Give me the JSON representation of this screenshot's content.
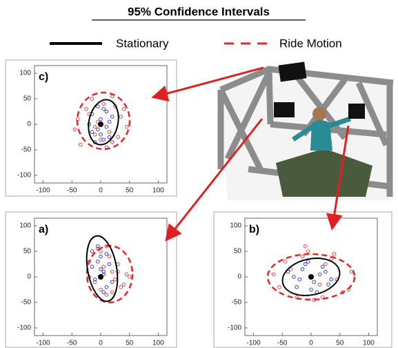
{
  "title": "95% Confidence Intervals",
  "legend": {
    "items": [
      {
        "name": "Stationary",
        "color": "#000000",
        "dash": false
      },
      {
        "name": "Ride Motion",
        "color": "#e02828",
        "dash": true
      }
    ]
  },
  "chart_data": [
    {
      "type": "scatter",
      "label": "c)",
      "xlim": [
        -115,
        115
      ],
      "ylim": [
        -115,
        115
      ],
      "xticks": [
        -100,
        -50,
        0,
        50,
        100
      ],
      "yticks": [
        -100,
        -50,
        0,
        50,
        100
      ],
      "series": [
        {
          "color": "#e04848",
          "x": [
            -40,
            -25,
            -10,
            5,
            20,
            35,
            45,
            -35,
            -15,
            10,
            25,
            -5,
            15,
            30,
            -20,
            0,
            40,
            -45,
            20,
            -10
          ],
          "values": [
            10,
            30,
            -20,
            40,
            -35,
            15,
            -5,
            -40,
            50,
            -45,
            35,
            5,
            -15,
            -25,
            20,
            -30,
            30,
            -10,
            55,
            -5
          ]
        },
        {
          "color": "#3b3bd8",
          "x": [
            -15,
            -5,
            5,
            15,
            -10,
            0,
            10,
            20,
            -20,
            5,
            -5,
            15,
            0,
            10,
            -15
          ],
          "values": [
            20,
            -10,
            30,
            -25,
            -35,
            10,
            -5,
            15,
            0,
            -30,
            35,
            5,
            -20,
            25,
            -15
          ]
        }
      ]
    },
    {
      "type": "scatter",
      "label": "a)",
      "xlim": [
        -115,
        115
      ],
      "ylim": [
        -115,
        115
      ],
      "xticks": [
        -100,
        -50,
        0,
        50,
        100
      ],
      "yticks": [
        -100,
        -50,
        0,
        50,
        100
      ],
      "series": [
        {
          "color": "#e04848",
          "x": [
            -20,
            0,
            20,
            35,
            45,
            10,
            -10,
            30,
            15,
            25,
            5,
            40,
            -5,
            20,
            30,
            50,
            0,
            10
          ],
          "values": [
            30,
            50,
            10,
            -20,
            5,
            -35,
            -10,
            25,
            40,
            -5,
            20,
            -15,
            55,
            -30,
            10,
            0,
            -25,
            60
          ]
        },
        {
          "color": "#3b3bd8",
          "x": [
            -15,
            -5,
            5,
            10,
            -10,
            0,
            15,
            -20,
            5,
            -5,
            10,
            0,
            -15,
            20,
            5
          ],
          "values": [
            50,
            30,
            10,
            -20,
            -5,
            40,
            25,
            0,
            -30,
            60,
            45,
            15,
            20,
            -10,
            5
          ]
        }
      ]
    },
    {
      "type": "scatter",
      "label": "b)",
      "xlim": [
        -115,
        115
      ],
      "ylim": [
        -115,
        115
      ],
      "xticks": [
        -100,
        -50,
        0,
        50,
        100
      ],
      "yticks": [
        -100,
        -50,
        0,
        50,
        100
      ],
      "series": [
        {
          "color": "#e04848",
          "x": [
            -65,
            -45,
            -25,
            -5,
            15,
            35,
            55,
            70,
            -55,
            -35,
            -15,
            5,
            25,
            45,
            65,
            -10,
            20,
            40
          ],
          "values": [
            5,
            30,
            -40,
            50,
            -15,
            35,
            -30,
            10,
            -20,
            15,
            40,
            -45,
            25,
            -5,
            -25,
            60,
            -40,
            45
          ]
        },
        {
          "color": "#3b3bd8",
          "x": [
            -40,
            -25,
            -10,
            5,
            20,
            35,
            -30,
            -15,
            0,
            15,
            30,
            -5,
            10,
            25,
            -20
          ],
          "values": [
            10,
            -20,
            25,
            -10,
            20,
            -5,
            0,
            15,
            -25,
            5,
            -15,
            30,
            -30,
            10,
            -5
          ]
        }
      ]
    }
  ]
}
